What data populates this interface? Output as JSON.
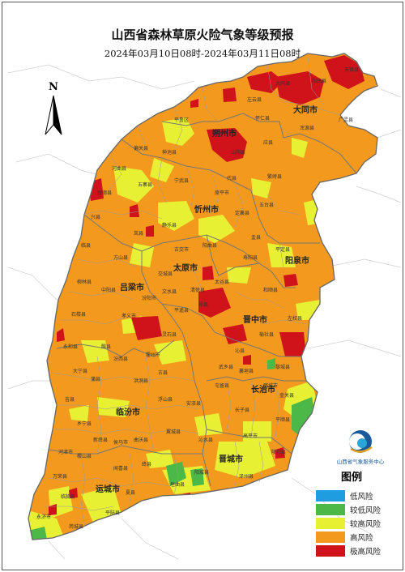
{
  "title": "山西省森林草原火险气象等级预报",
  "subtitle": "2024年03月10日08时-2024年03月11日08时",
  "north_label": "N",
  "logo_text": "山西省气象服务中心",
  "legend": {
    "title": "图例",
    "items": [
      {
        "label": "低风险",
        "color": "#1e9de0"
      },
      {
        "label": "较低风险",
        "color": "#4cb848"
      },
      {
        "label": "较高风险",
        "color": "#e8f034"
      },
      {
        "label": "高风险",
        "color": "#f39a1e"
      },
      {
        "label": "极高风险",
        "color": "#d0121b"
      }
    ]
  },
  "colors": {
    "province_fill": "#f39a1e",
    "outside": "#ffffff",
    "boundary": "#8a8a8a"
  },
  "cities": {
    "datong": "大同市",
    "shuozhou": "朔州市",
    "xinzhou": "忻州市",
    "taiyuan": "太原市",
    "yangquan": "阳泉市",
    "lvliang": "吕梁市",
    "jinzhong": "晋中市",
    "changzhi": "长治市",
    "linfen": "临汾市",
    "jincheng": "晋城市",
    "yuncheng": "运城市"
  },
  "counties": {
    "c1": "天镇县",
    "c2": "阳高县",
    "c3": "大同县",
    "c4": "广灵县",
    "c5": "浑源县",
    "c6": "应县",
    "c7": "怀仁县",
    "c8": "平鲁区",
    "c9": "偏关县",
    "c10": "河曲县",
    "c11": "五寨县",
    "c12": "宁武县",
    "c13": "代县",
    "c14": "繁峙县",
    "c15": "五台县",
    "c16": "定襄县",
    "c17": "岚县",
    "c18": "静乐县",
    "c19": "阳曲县",
    "c20": "盂县",
    "c21": "临县",
    "c22": "方山县",
    "c23": "交城县",
    "c24": "寿阳县",
    "c25": "平定县",
    "c26": "柳林县",
    "c27": "中阳县",
    "c28": "汾阳市",
    "c29": "太谷县",
    "c30": "和顺县",
    "c31": "石楼县",
    "c32": "孝义市",
    "c33": "平遥县",
    "c34": "左权县",
    "c35": "永和县",
    "c36": "灵石县",
    "c37": "沁县",
    "c38": "黎城县",
    "c39": "大宁县",
    "c40": "古县",
    "c41": "屯留县",
    "c42": "壶关县",
    "c43": "吉县",
    "c44": "浮山县",
    "c45": "长子县",
    "c46": "平顺县",
    "c47": "乡宁县",
    "c48": "翼城县",
    "c49": "沁水县",
    "c50": "陵川县",
    "c51": "河津市",
    "c52": "绛县",
    "c53": "阳城县",
    "c54": "泽州县",
    "c55": "万荣县",
    "c56": "闻喜县",
    "c57": "垣曲县",
    "c58": "临猗县",
    "c59": "夏县",
    "c60": "永济市",
    "c61": "芮城县",
    "c62": "平陆县",
    "c63": "左云县",
    "c64": "山阴县",
    "c65": "神池县",
    "c66": "保德县",
    "c67": "兴县",
    "c68": "原平市",
    "c69": "古交市",
    "c70": "清徐县",
    "c71": "文水县",
    "c72": "祁县",
    "c73": "榆社县",
    "c74": "武乡县",
    "c75": "襄垣县",
    "c76": "潞城市",
    "c77": "高平市",
    "c78": "安泽县",
    "c79": "洪洞县",
    "c80": "霍州市",
    "c81": "汾西县",
    "c82": "蒲县",
    "c83": "隰县",
    "c84": "侯马市",
    "c85": "曲沃县",
    "c86": "新绛县",
    "c87": "稷山县"
  }
}
